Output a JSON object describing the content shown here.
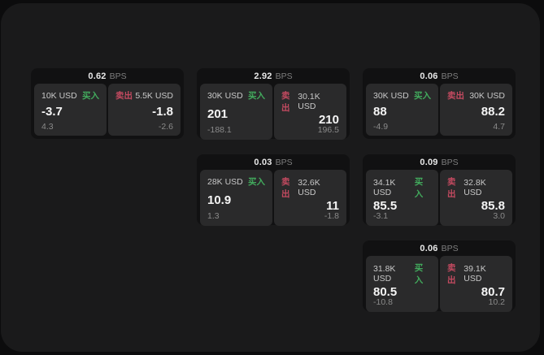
{
  "labels": {
    "buy": "买入",
    "sell": "卖出",
    "bps": "BPS"
  },
  "colors": {
    "buy": "#42ab5d",
    "sell": "#c34a60",
    "panel_bg": "#1a1a1b",
    "card_bg": "#111112",
    "tile_bg": "#2a2a2b"
  },
  "cards": [
    {
      "bps": "0.62",
      "buy": {
        "amount": "10K USD",
        "value": "-3.7",
        "sub": "4.3"
      },
      "sell": {
        "amount": "5.5K USD",
        "value": "-1.8",
        "sub": "-2.6"
      }
    },
    {
      "bps": "2.92",
      "buy": {
        "amount": "30K USD",
        "value": "201",
        "sub": "-188.1"
      },
      "sell": {
        "amount": "30.1K USD",
        "value": "210",
        "sub": "196.5"
      }
    },
    {
      "bps": "0.06",
      "buy": {
        "amount": "30K USD",
        "value": "88",
        "sub": "-4.9"
      },
      "sell": {
        "amount": "30K USD",
        "value": "88.2",
        "sub": "4.7"
      }
    },
    {
      "bps": "0.03",
      "buy": {
        "amount": "28K USD",
        "value": "10.9",
        "sub": "1.3"
      },
      "sell": {
        "amount": "32.6K USD",
        "value": "11",
        "sub": "-1.8"
      }
    },
    {
      "bps": "0.09",
      "buy": {
        "amount": "34.1K USD",
        "value": "85.5",
        "sub": "-3.1"
      },
      "sell": {
        "amount": "32.8K USD",
        "value": "85.8",
        "sub": "3.0"
      }
    },
    {
      "bps": "0.06",
      "buy": {
        "amount": "31.8K USD",
        "value": "80.5",
        "sub": "-10.8"
      },
      "sell": {
        "amount": "39.1K USD",
        "value": "80.7",
        "sub": "10.2"
      }
    }
  ]
}
